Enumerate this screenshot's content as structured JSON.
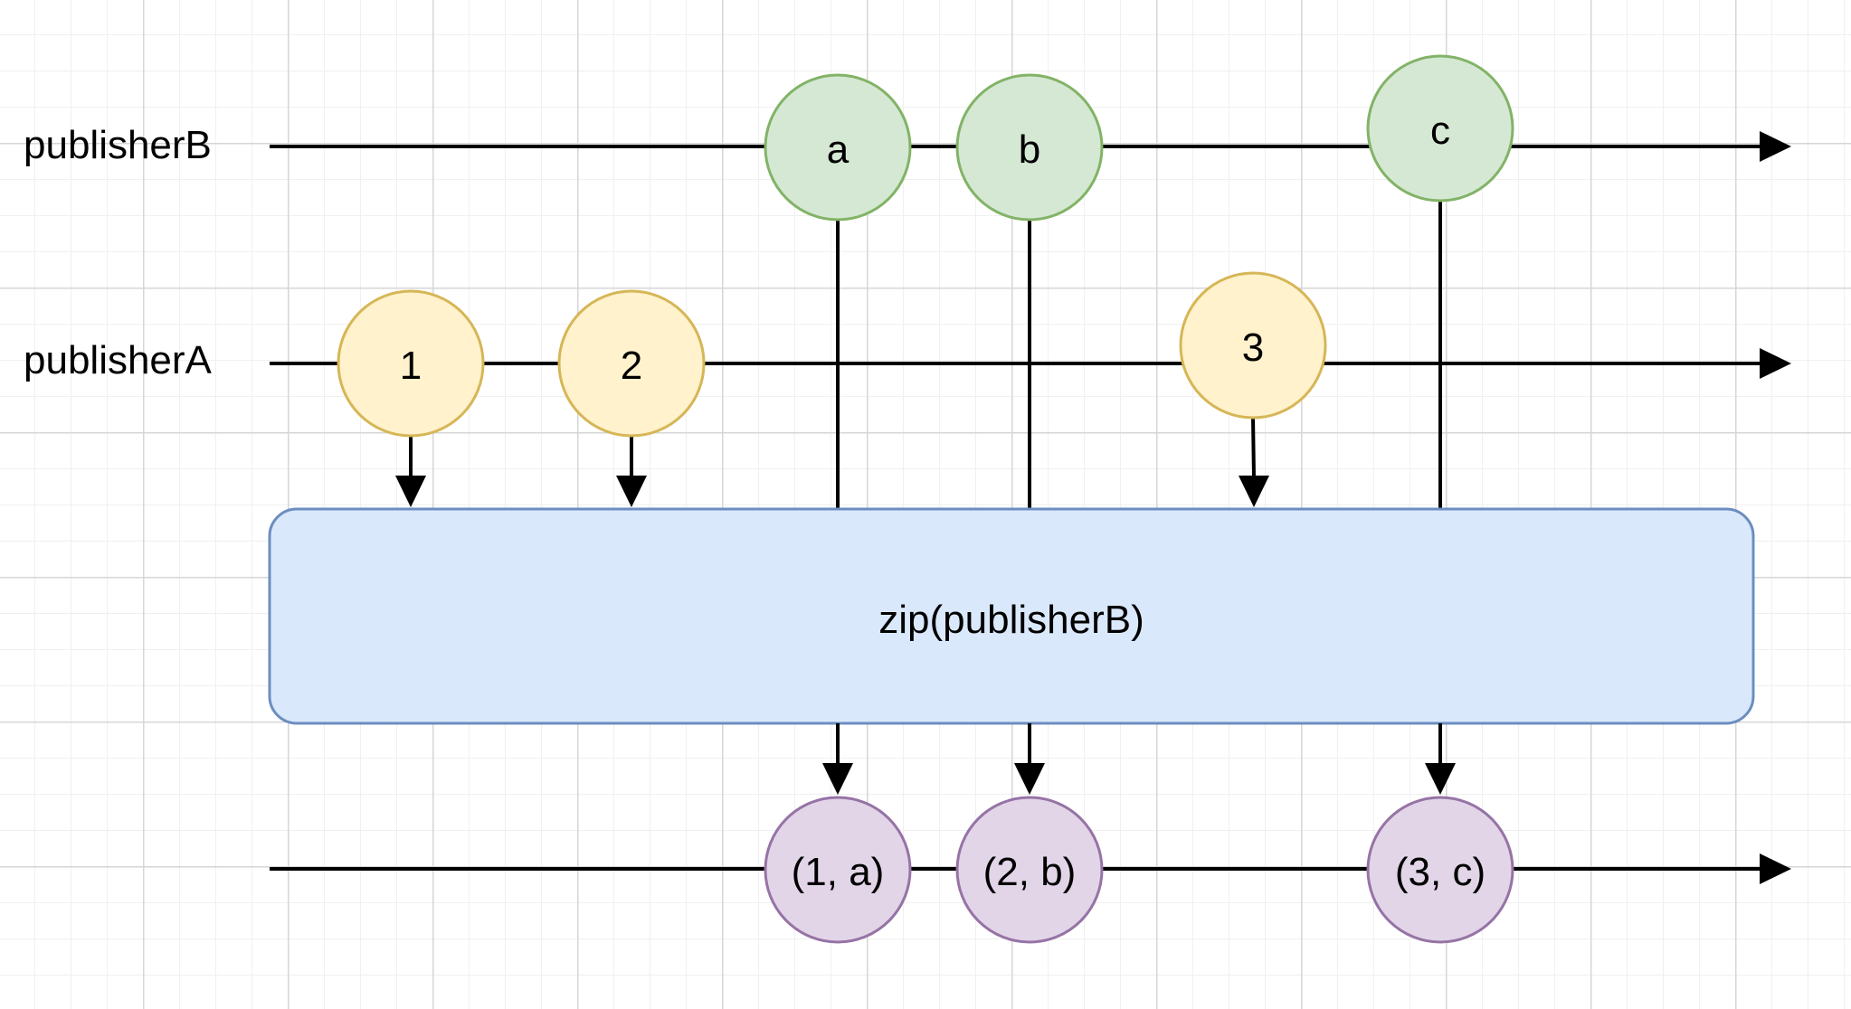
{
  "streams": {
    "publisherB_label": "publisherB",
    "publisherA_label": "publisherA"
  },
  "marbles": {
    "b_a": "a",
    "b_b": "b",
    "b_c": "c",
    "a_1": "1",
    "a_2": "2",
    "a_3": "3",
    "out_1": "(1, a)",
    "out_2": "(2, b)",
    "out_3": "(3, c)"
  },
  "operator": {
    "label": "zip(publisherB)"
  },
  "colors": {
    "green_fill": "#d5e8d4",
    "green_stroke": "#82b366",
    "yellow_fill": "#fff2cc",
    "yellow_stroke": "#d6b656",
    "blue_fill": "#dae8fc",
    "blue_stroke": "#6c8ebf",
    "purple_fill": "#e1d5e7",
    "purple_stroke": "#9673a6"
  }
}
